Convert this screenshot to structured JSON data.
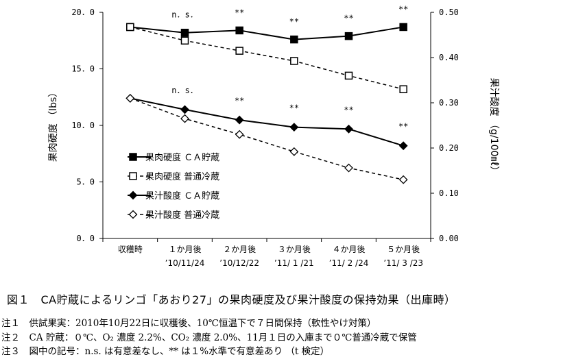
{
  "chart_data": {
    "type": "line",
    "categories": [
      {
        "line1": "収穫時",
        "line2": ""
      },
      {
        "line1": "１か月後",
        "line2": "’10/11/24"
      },
      {
        "line1": "２か月後",
        "line2": "’10/12/22"
      },
      {
        "line1": "３か月後",
        "line2": "’11/ 1 /21"
      },
      {
        "line1": "４か月後",
        "line2": "’11/ 2 /24"
      },
      {
        "line1": "５か月後",
        "line2": "’11/ 3 /23"
      }
    ],
    "ylabel_left": "果肉硬度 （lbs）",
    "ylabel_right": "果汁酸度 （g/100㎖）",
    "ylim_left": [
      0,
      20
    ],
    "ylim_right": [
      0,
      0.5
    ],
    "yticks_left": [
      "0．0",
      "5．0",
      "10．0",
      "15．0",
      "20．0"
    ],
    "yticks_right": [
      "0.00",
      "0.10",
      "0.20",
      "0.30",
      "0.40",
      "0.50"
    ],
    "series": [
      {
        "name": "果肉硬度 ＣＡ貯蔵",
        "axis": "left",
        "marker": "square-filled",
        "dash": false,
        "values": [
          18.7,
          18.2,
          18.4,
          17.6,
          17.9,
          18.7
        ]
      },
      {
        "name": "果肉硬度 普通冷蔵",
        "axis": "left",
        "marker": "square-open",
        "dash": true,
        "values": [
          18.7,
          17.5,
          16.6,
          15.7,
          14.4,
          13.2
        ]
      },
      {
        "name": "果汁酸度 ＣＡ貯蔵",
        "axis": "right",
        "marker": "diamond-filled",
        "dash": false,
        "values": [
          0.31,
          0.285,
          0.262,
          0.246,
          0.242,
          0.205
        ]
      },
      {
        "name": "果汁酸度 普通冷蔵",
        "axis": "right",
        "marker": "diamond-open",
        "dash": true,
        "values": [
          0.31,
          0.265,
          0.23,
          0.192,
          0.156,
          0.13
        ]
      }
    ],
    "annotations_top": [
      "",
      "n．s．",
      "**",
      "**",
      "**",
      "**"
    ],
    "annotations_lower": [
      "",
      "n．s．",
      "**",
      "**",
      "**",
      "**"
    ],
    "legend_position": "inside-left"
  },
  "caption": "図１　CA貯蔵によるリンゴ「あおり27」の果肉硬度及び果汁酸度の保持効果（出庫時）",
  "notes": [
    "注１　供試果実：2010年10月22日に収穫後、10℃恒温下で７日間保持（軟性やけ対策）",
    "注２　CA 貯蔵：０℃、O₂ 濃度 2.2%、CO₂ 濃度 2.0%、11月１日の入庫まで０℃普通冷蔵で保管",
    "注３　図中の記号：n.s. は有意差なし、** は１%水準で有意差あり （t 検定）"
  ]
}
